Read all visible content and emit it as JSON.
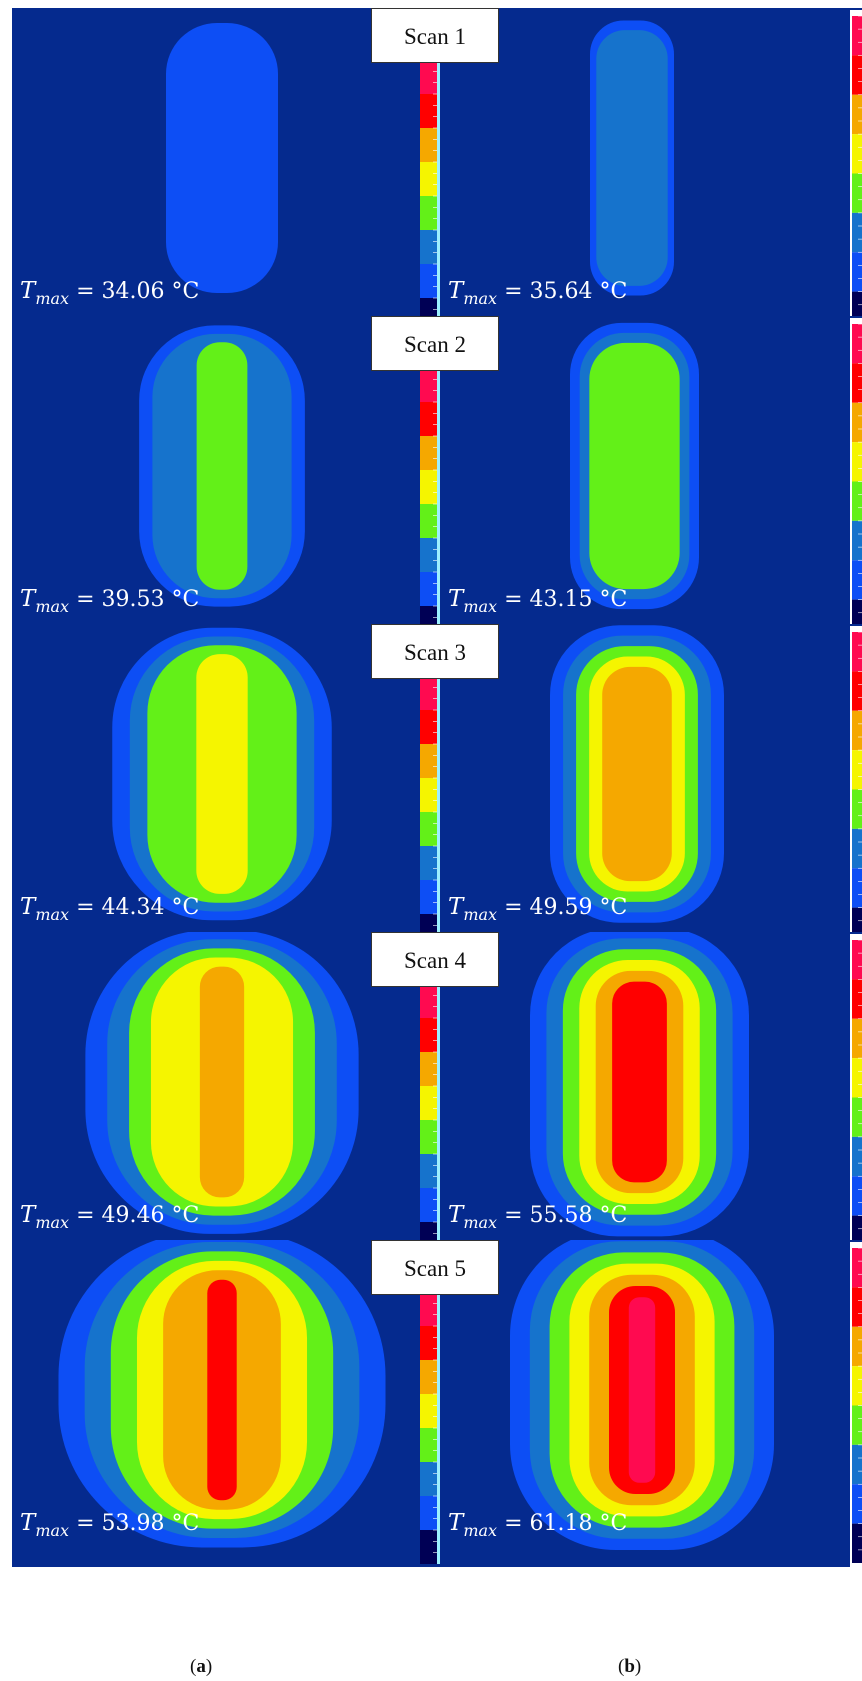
{
  "panels": [
    {
      "scan_label": "Scan 1",
      "left_value": "34.06",
      "right_value": "35.64"
    },
    {
      "scan_label": "Scan 2",
      "left_value": "39.53",
      "right_value": "43.15"
    },
    {
      "scan_label": "Scan 3",
      "left_value": "44.34",
      "right_value": "49.59"
    },
    {
      "scan_label": "Scan 4",
      "left_value": "49.46",
      "right_value": "55.58"
    },
    {
      "scan_label": "Scan 5",
      "left_value": "53.98",
      "right_value": "61.18"
    }
  ],
  "tmax_symbol": "T",
  "tmax_subscript": "max",
  "unit": "°C",
  "caption_a": "a",
  "caption_b": "b",
  "colors": {
    "background": "#052a8e",
    "levels": [
      "#0d4ef5",
      "#1673cc",
      "#63f018",
      "#f5f500",
      "#f5a800",
      "#ff0000",
      "#ff0a50"
    ],
    "colorbar": [
      "#ff0a50",
      "#ff0000",
      "#f5a800",
      "#f5f500",
      "#63f018",
      "#1673cc",
      "#0d4ef5",
      "#000055"
    ]
  },
  "levels_shown": [
    {
      "left": 1,
      "right": 2
    },
    {
      "left": 3,
      "right": 3
    },
    {
      "left": 4,
      "right": 5
    },
    {
      "left": 5,
      "right": 6
    },
    {
      "left": 6,
      "right": 7
    }
  ]
}
